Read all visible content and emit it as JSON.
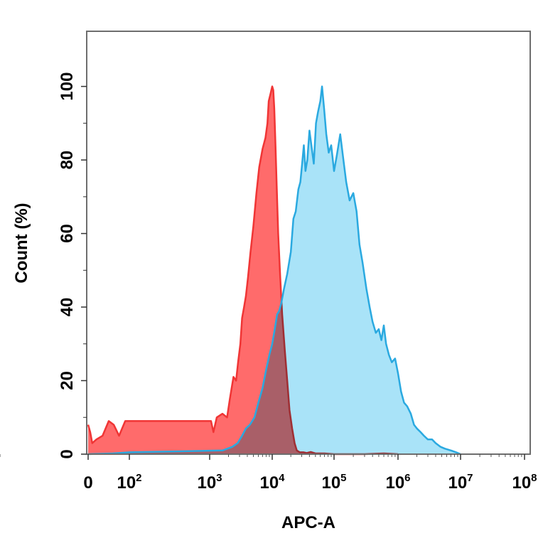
{
  "chart_data": {
    "type": "area",
    "title": "",
    "xlabel": "APC-A",
    "ylabel": "Count (%)",
    "xscale": "biexponential (0, then log10 decades)",
    "xlim": [
      0,
      100000000
    ],
    "ylim": [
      0,
      115
    ],
    "grid": false,
    "legend": "none",
    "x_ticks": [
      {
        "base": "0",
        "exp": ""
      },
      {
        "base": "10",
        "exp": "2"
      },
      {
        "base": "10",
        "exp": "3"
      },
      {
        "base": "10",
        "exp": "4"
      },
      {
        "base": "10",
        "exp": "5"
      },
      {
        "base": "10",
        "exp": "6"
      },
      {
        "base": "10",
        "exp": "7"
      },
      {
        "base": "10",
        "exp": "8"
      }
    ],
    "y_ticks": [
      "0",
      "20",
      "40",
      "60",
      "80",
      "100"
    ],
    "series": [
      {
        "color": "#ff6b6b",
        "line_color": "#f03535",
        "points": [
          [
            0,
            8
          ],
          [
            5,
            6
          ],
          [
            10,
            3
          ],
          [
            20,
            4
          ],
          [
            35,
            5
          ],
          [
            50,
            9
          ],
          [
            62,
            8
          ],
          [
            75,
            5
          ],
          [
            90,
            9
          ],
          [
            105,
            9
          ],
          [
            115,
            6
          ],
          [
            130,
            10
          ],
          [
            160,
            11
          ],
          [
            190,
            10
          ],
          [
            210,
            15
          ],
          [
            240,
            21
          ],
          [
            265,
            20
          ],
          [
            285,
            25
          ],
          [
            310,
            30
          ],
          [
            330,
            37
          ],
          [
            355,
            40
          ],
          [
            380,
            43
          ],
          [
            410,
            48
          ],
          [
            450,
            55
          ],
          [
            500,
            62
          ],
          [
            560,
            71
          ],
          [
            620,
            78
          ],
          [
            700,
            83
          ],
          [
            780,
            86
          ],
          [
            840,
            90
          ],
          [
            880,
            96
          ],
          [
            940,
            98
          ],
          [
            1000,
            100
          ],
          [
            1040,
            99
          ],
          [
            1080,
            94
          ],
          [
            1130,
            84
          ],
          [
            1180,
            73
          ],
          [
            1250,
            60
          ],
          [
            1350,
            48
          ],
          [
            1450,
            38
          ],
          [
            1600,
            28
          ],
          [
            1750,
            20
          ],
          [
            1900,
            12
          ],
          [
            2100,
            7
          ],
          [
            2300,
            3
          ],
          [
            2500,
            1
          ],
          [
            2800,
            0.5
          ],
          [
            3200,
            0.5
          ],
          [
            3600,
            0.3
          ],
          [
            4200,
            0.6
          ],
          [
            5000,
            0.2
          ],
          [
            7000,
            0.2
          ],
          [
            10000,
            0
          ],
          [
            30000,
            0
          ],
          [
            60000,
            0.2
          ],
          [
            100000,
            0
          ]
        ]
      },
      {
        "color": "#6fd0f4",
        "line_color": "#2aa9e0",
        "points": [
          [
            0,
            0
          ],
          [
            60,
            0.2
          ],
          [
            100,
            0.5
          ],
          [
            160,
            1
          ],
          [
            230,
            2
          ],
          [
            280,
            3
          ],
          [
            330,
            5
          ],
          [
            380,
            7
          ],
          [
            440,
            8
          ],
          [
            520,
            10
          ],
          [
            600,
            14
          ],
          [
            700,
            18
          ],
          [
            800,
            23
          ],
          [
            900,
            27
          ],
          [
            1000,
            30
          ],
          [
            1100,
            34
          ],
          [
            1200,
            38
          ],
          [
            1300,
            39
          ],
          [
            1400,
            41
          ],
          [
            1550,
            45
          ],
          [
            1750,
            49
          ],
          [
            2000,
            55
          ],
          [
            2200,
            64
          ],
          [
            2400,
            66
          ],
          [
            2650,
            72
          ],
          [
            2850,
            74
          ],
          [
            3050,
            79
          ],
          [
            3250,
            84
          ],
          [
            3450,
            77
          ],
          [
            3700,
            80
          ],
          [
            4000,
            88
          ],
          [
            4300,
            84
          ],
          [
            4700,
            79
          ],
          [
            5100,
            90
          ],
          [
            5500,
            93
          ],
          [
            6000,
            96
          ],
          [
            6400,
            100
          ],
          [
            6900,
            94
          ],
          [
            7500,
            87
          ],
          [
            8200,
            82
          ],
          [
            9000,
            84
          ],
          [
            10000,
            77
          ],
          [
            11000,
            81
          ],
          [
            12500,
            87
          ],
          [
            14000,
            80
          ],
          [
            15500,
            74
          ],
          [
            17500,
            69
          ],
          [
            20000,
            71
          ],
          [
            22500,
            66
          ],
          [
            25000,
            57
          ],
          [
            28000,
            52
          ],
          [
            32000,
            45
          ],
          [
            36000,
            40
          ],
          [
            40000,
            36
          ],
          [
            45000,
            33
          ],
          [
            50000,
            34
          ],
          [
            55000,
            31
          ],
          [
            60000,
            35
          ],
          [
            65000,
            30
          ],
          [
            72000,
            27
          ],
          [
            80000,
            25
          ],
          [
            90000,
            26
          ],
          [
            100000,
            22
          ],
          [
            112000,
            17
          ],
          [
            125000,
            14
          ],
          [
            140000,
            13
          ],
          [
            160000,
            11
          ],
          [
            180000,
            8
          ],
          [
            200000,
            7
          ],
          [
            230000,
            6
          ],
          [
            260000,
            5
          ],
          [
            300000,
            4
          ],
          [
            350000,
            4
          ],
          [
            400000,
            3
          ],
          [
            480000,
            2
          ],
          [
            560000,
            1.5
          ],
          [
            700000,
            1
          ],
          [
            850000,
            0.5
          ],
          [
            1000000,
            0
          ]
        ]
      }
    ]
  }
}
